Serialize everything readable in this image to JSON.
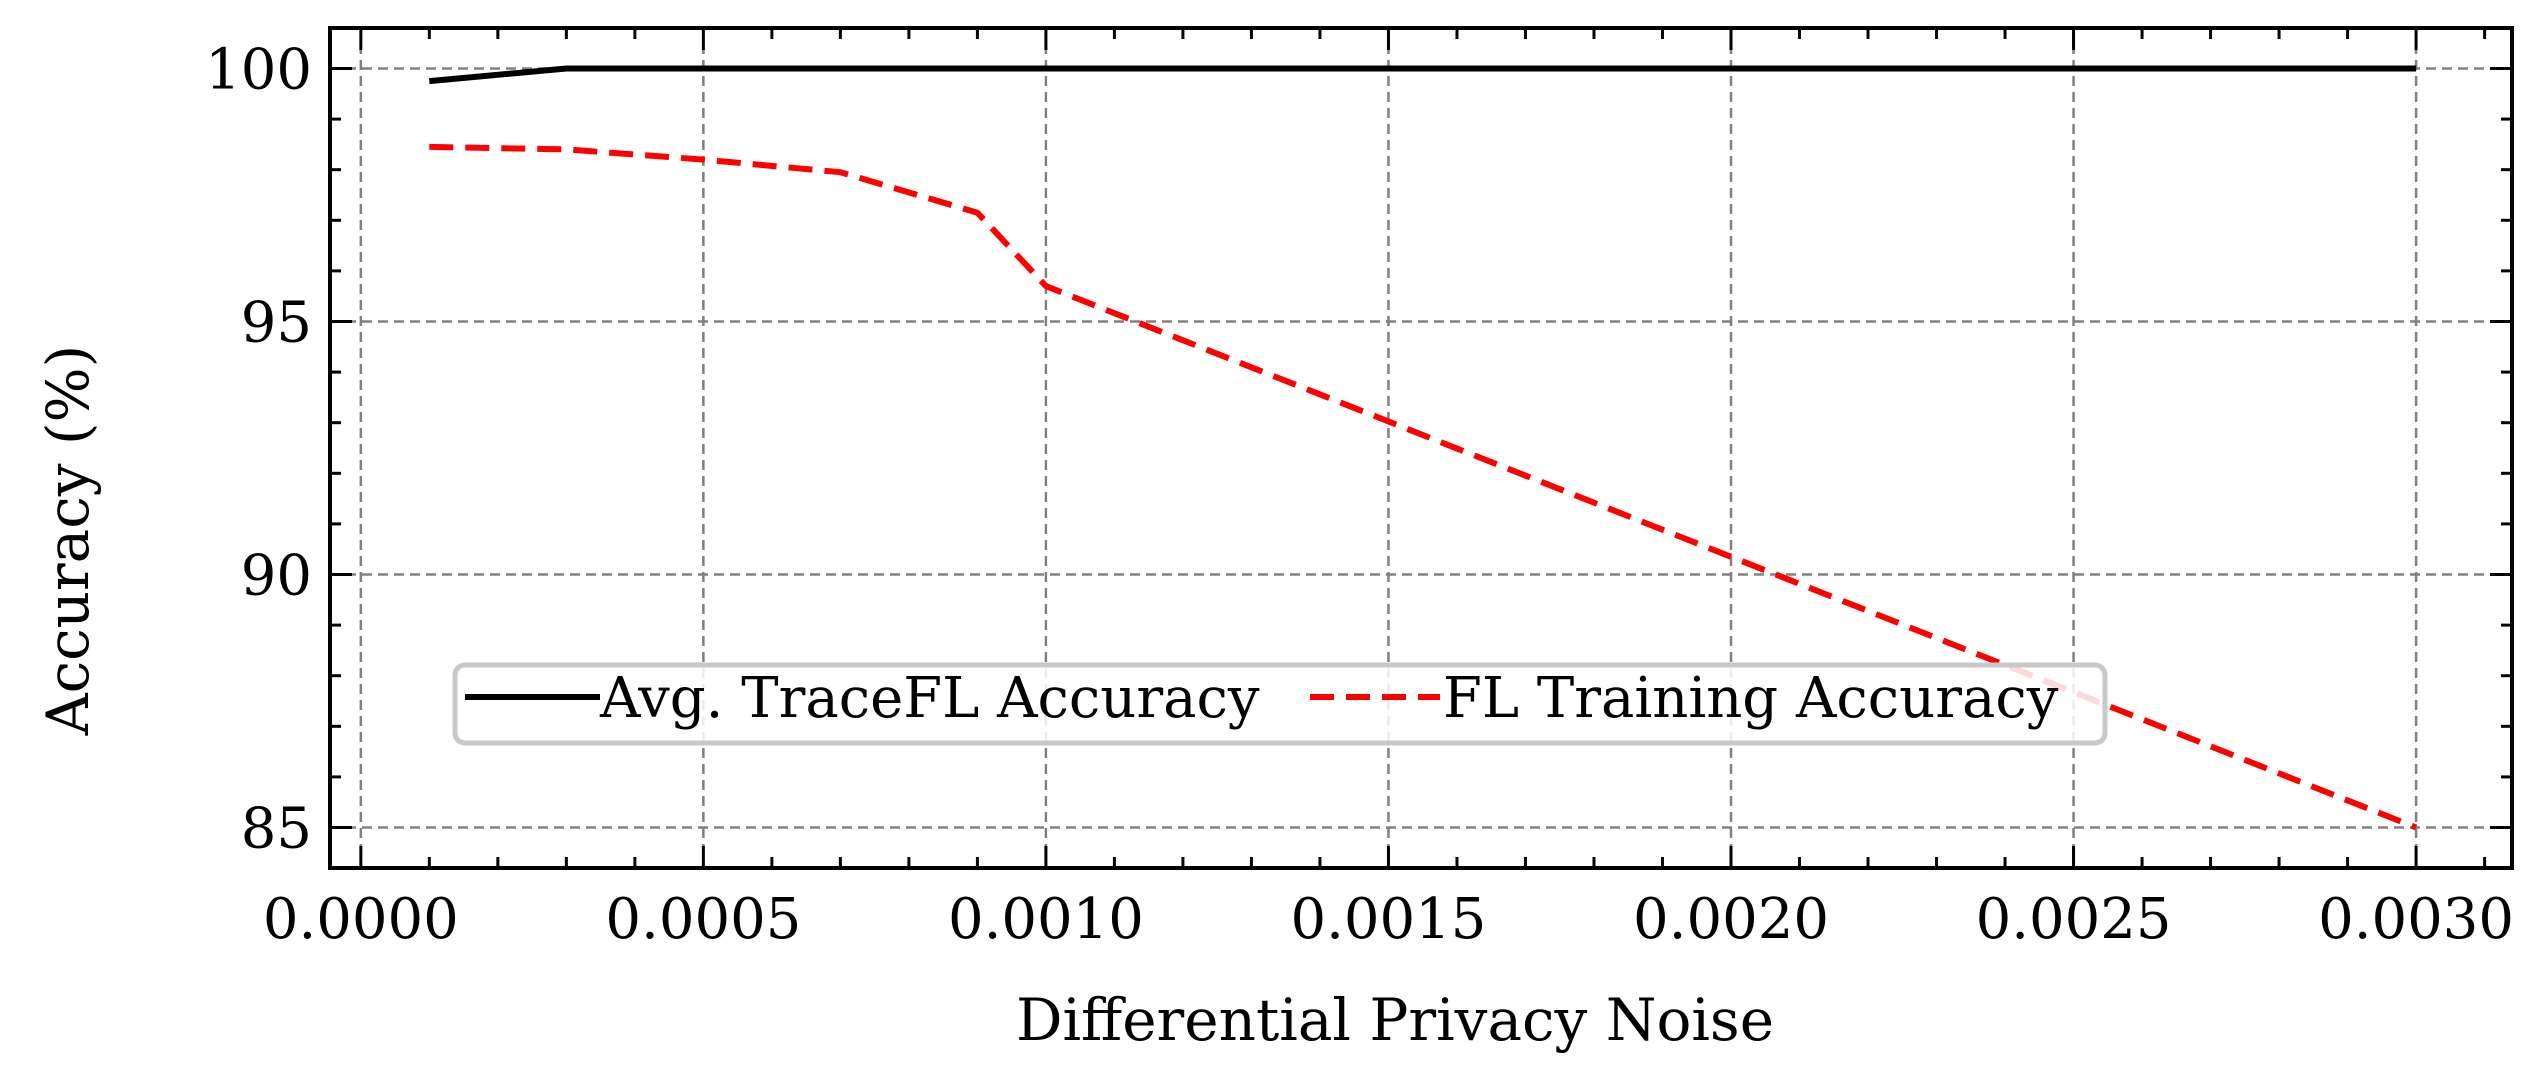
{
  "chart_data": {
    "type": "line",
    "title": "",
    "xlabel": "Differential Privacy Noise",
    "ylabel": "Accuracy (%)",
    "xlim": [
      -4.5e-05,
      0.00314
    ],
    "ylim": [
      84.2,
      100.8
    ],
    "xticks": [
      0.0,
      0.0005,
      0.001,
      0.0015,
      0.002,
      0.0025,
      0.003
    ],
    "xtick_labels": [
      "0.0000",
      "0.0005",
      "0.0010",
      "0.0015",
      "0.0020",
      "0.0025",
      "0.0030"
    ],
    "yticks": [
      85,
      90,
      95,
      100
    ],
    "ytick_labels": [
      "85",
      "90",
      "95",
      "100"
    ],
    "grid": true,
    "legend": {
      "placement": "lower-center",
      "columns": 2
    },
    "series": [
      {
        "name": "Avg. TraceFL Accuracy",
        "color": "#000000",
        "style": "solid",
        "x": [
          0.0001,
          0.0003,
          0.0005,
          0.0007,
          0.0009,
          0.001,
          0.003
        ],
        "y": [
          99.75,
          100.0,
          100.0,
          100.0,
          100.0,
          100.0,
          100.0
        ]
      },
      {
        "name": "FL Training Accuracy",
        "color": "#ff0000",
        "style": "dashed",
        "x": [
          0.0001,
          0.0003,
          0.0005,
          0.0007,
          0.0009,
          0.001,
          0.003
        ],
        "y": [
          98.45,
          98.4,
          98.2,
          97.95,
          97.15,
          95.7,
          85.0
        ]
      }
    ]
  }
}
